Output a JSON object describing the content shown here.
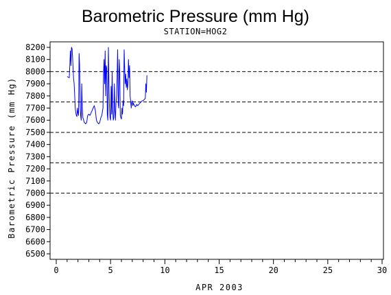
{
  "chart_data": {
    "type": "line",
    "title": "Barometric Pressure (mm Hg)",
    "subtitle": "STATION=HOG2",
    "xlabel": "APR 2003",
    "ylabel": "Barometric Pressure (mm Hg)",
    "xlim": [
      0,
      30
    ],
    "ylim": [
      6500,
      8200
    ],
    "x_ticks": [
      0,
      5,
      10,
      15,
      20,
      25,
      30
    ],
    "y_ticks": [
      6500,
      6600,
      6700,
      6800,
      6900,
      7000,
      7100,
      7200,
      7300,
      7400,
      7500,
      7600,
      7700,
      7800,
      7900,
      8000,
      8100,
      8200
    ],
    "reference_lines": [
      8000,
      7750,
      7500,
      7250,
      7000
    ],
    "series_color": "#0000ff",
    "series": [
      {
        "x": [
          1.0,
          1.2,
          1.3,
          1.35,
          1.4,
          1.45,
          1.5,
          1.55,
          1.6,
          1.65,
          1.7,
          1.75,
          1.8,
          1.85,
          1.9,
          1.95,
          2.0,
          2.05,
          2.1,
          2.15,
          2.2,
          2.25,
          2.3,
          2.35,
          2.4,
          2.45,
          2.5,
          2.55,
          2.6,
          2.7,
          2.8,
          2.9,
          3.0,
          3.1,
          3.2,
          3.3,
          3.4,
          3.5,
          3.6,
          3.7,
          3.8,
          3.9,
          4.0,
          4.1,
          4.2,
          4.3,
          4.35,
          4.4,
          4.45,
          4.5,
          4.55,
          4.6,
          4.65,
          4.7,
          4.75,
          4.8,
          4.85,
          4.9,
          4.95,
          5.0,
          5.05,
          5.1,
          5.15,
          5.2,
          5.25,
          5.3,
          5.35,
          5.4,
          5.45,
          5.5,
          5.55,
          5.6,
          5.65,
          5.7,
          5.75,
          5.8,
          5.85,
          5.9,
          5.95,
          6.0,
          6.05,
          6.1,
          6.15,
          6.2,
          6.25,
          6.3,
          6.35,
          6.4,
          6.45,
          6.5,
          6.55,
          6.6,
          6.65,
          6.7,
          6.75,
          6.8,
          6.85,
          6.9,
          6.95,
          7.0,
          7.05,
          7.1,
          7.2,
          7.3,
          7.4,
          7.5,
          7.6,
          7.7,
          7.8,
          7.9,
          8.0,
          8.1,
          8.2,
          8.25,
          8.3,
          8.35
        ],
        "y": [
          7960,
          7950,
          8170,
          8050,
          8200,
          8190,
          8120,
          8030,
          7940,
          7900,
          7800,
          7700,
          7660,
          7640,
          7630,
          7700,
          7660,
          7640,
          8150,
          8060,
          7720,
          7640,
          7600,
          7900,
          7700,
          7620,
          7610,
          7590,
          7580,
          7570,
          7580,
          7640,
          7650,
          7640,
          7660,
          7680,
          7700,
          7720,
          7680,
          7600,
          7580,
          7570,
          7580,
          7620,
          7640,
          7700,
          7980,
          8100,
          7900,
          8170,
          7800,
          8050,
          8030,
          7650,
          7600,
          8200,
          7900,
          7700,
          7620,
          7600,
          7880,
          7650,
          8000,
          7690,
          7600,
          7620,
          7900,
          7680,
          7600,
          7740,
          7800,
          7950,
          8180,
          7740,
          7700,
          8100,
          7990,
          7640,
          7620,
          7610,
          7700,
          7650,
          7760,
          7720,
          8180,
          8020,
          7900,
          7980,
          7870,
          7940,
          7850,
          7900,
          8100,
          7950,
          8050,
          7800,
          7750,
          7700,
          7750,
          7760,
          7720,
          7740,
          7720,
          7710,
          7730,
          7720,
          7730,
          7740,
          7750,
          7760,
          7760,
          7770,
          7780,
          7900,
          7830,
          7970
        ]
      }
    ]
  }
}
